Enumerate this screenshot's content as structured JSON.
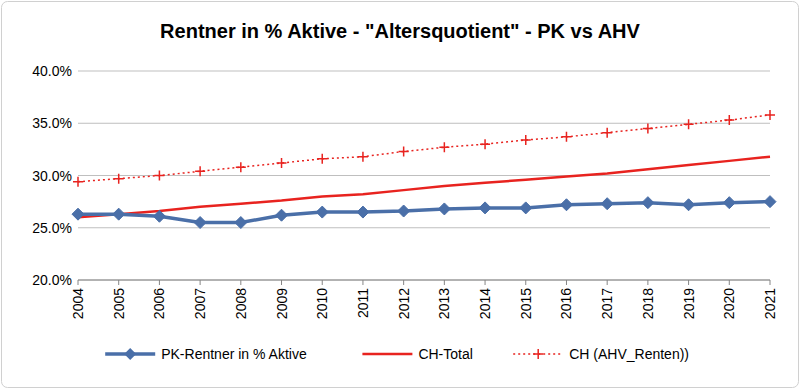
{
  "chart_data": {
    "type": "line",
    "title": "Rentner in % Aktive - \"Altersquotient\" - PK vs AHV",
    "categories": [
      "2004",
      "2005",
      "2006",
      "2007",
      "2008",
      "2009",
      "2010",
      "2011",
      "2012",
      "2013",
      "2014",
      "2015",
      "2016",
      "2017",
      "2018",
      "2019",
      "2020",
      "2021"
    ],
    "series": [
      {
        "name": "PK-Rentner in % Aktive",
        "color": "#4a6fa8",
        "marker": "diamond",
        "line_style": "solid",
        "values": [
          26.3,
          26.3,
          26.1,
          25.5,
          25.5,
          26.2,
          26.5,
          26.5,
          26.6,
          26.8,
          26.9,
          26.9,
          27.2,
          27.3,
          27.4,
          27.2,
          27.4,
          27.5
        ]
      },
      {
        "name": "CH-Total",
        "color": "#e8231f",
        "marker": "none",
        "line_style": "solid",
        "values": [
          26.0,
          26.3,
          26.6,
          27.0,
          27.3,
          27.6,
          28.0,
          28.2,
          28.6,
          29.0,
          29.3,
          29.6,
          29.9,
          30.2,
          30.6,
          31.0,
          31.4,
          31.8
        ]
      },
      {
        "name": "CH (AHV_Renten))",
        "color": "#e8231f",
        "marker": "plus",
        "line_style": "dotted",
        "values": [
          29.4,
          29.7,
          30.0,
          30.4,
          30.8,
          31.2,
          31.6,
          31.8,
          32.3,
          32.7,
          33.0,
          33.4,
          33.7,
          34.1,
          34.5,
          34.9,
          35.3,
          35.8
        ]
      }
    ],
    "ylim": [
      20,
      40
    ],
    "yticks": [
      {
        "value": 20,
        "label": "20.0%"
      },
      {
        "value": 25,
        "label": "25.0%"
      },
      {
        "value": 30,
        "label": "30.0%"
      },
      {
        "value": 35,
        "label": "35.0%"
      },
      {
        "value": 40,
        "label": "40.0%"
      }
    ],
    "grid": true,
    "legend": "bottom"
  }
}
